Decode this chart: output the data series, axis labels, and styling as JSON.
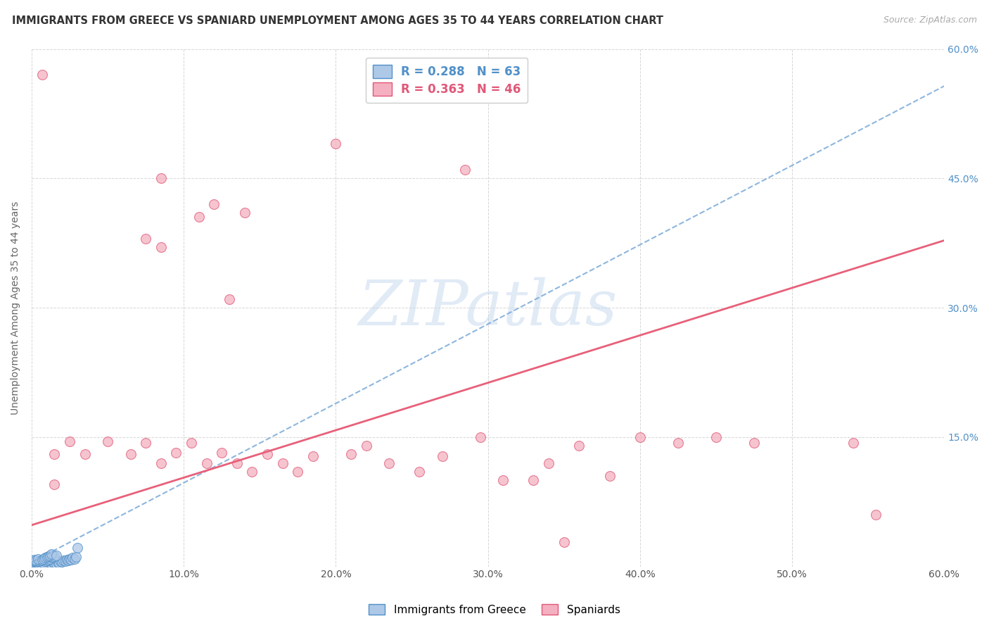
{
  "title": "IMMIGRANTS FROM GREECE VS SPANIARD UNEMPLOYMENT AMONG AGES 35 TO 44 YEARS CORRELATION CHART",
  "source": "Source: ZipAtlas.com",
  "ylabel": "Unemployment Among Ages 35 to 44 years",
  "xlim": [
    0.0,
    0.6
  ],
  "ylim": [
    0.0,
    0.6
  ],
  "xticks": [
    0.0,
    0.1,
    0.2,
    0.3,
    0.4,
    0.5,
    0.6
  ],
  "yticks": [
    0.0,
    0.15,
    0.3,
    0.45,
    0.6
  ],
  "xtick_labels": [
    "0.0%",
    "10.0%",
    "20.0%",
    "30.0%",
    "40.0%",
    "50.0%",
    "60.0%"
  ],
  "ytick_labels_right": [
    "",
    "15.0%",
    "30.0%",
    "45.0%",
    "60.0%"
  ],
  "greece_R": "0.288",
  "greece_N": "63",
  "spain_R": "0.363",
  "spain_N": "46",
  "greece_color": "#aec8e8",
  "spain_color": "#f4b0c0",
  "greece_edge_color": "#5090c8",
  "spain_edge_color": "#e05878",
  "greece_line_color": "#7aaad8",
  "spain_line_color": "#e8607a",
  "right_tick_color": "#5090c8",
  "watermark_text": "ZIPatlas",
  "greece_line_slope": 0.92,
  "greece_line_intercept": 0.005,
  "spain_line_slope": 0.55,
  "spain_line_intercept": 0.048,
  "greece_points": [
    [
      0.001,
      0.001
    ],
    [
      0.002,
      0.002
    ],
    [
      0.003,
      0.001
    ],
    [
      0.002,
      0.003
    ],
    [
      0.004,
      0.002
    ],
    [
      0.001,
      0.004
    ],
    [
      0.003,
      0.003
    ],
    [
      0.005,
      0.001
    ],
    [
      0.001,
      0.005
    ],
    [
      0.004,
      0.004
    ],
    [
      0.006,
      0.002
    ],
    [
      0.002,
      0.006
    ],
    [
      0.007,
      0.003
    ],
    [
      0.003,
      0.005
    ],
    [
      0.005,
      0.003
    ],
    [
      0.008,
      0.001
    ],
    [
      0.001,
      0.007
    ],
    [
      0.006,
      0.004
    ],
    [
      0.009,
      0.002
    ],
    [
      0.004,
      0.006
    ],
    [
      0.01,
      0.003
    ],
    [
      0.002,
      0.008
    ],
    [
      0.007,
      0.005
    ],
    [
      0.011,
      0.004
    ],
    [
      0.003,
      0.007
    ],
    [
      0.012,
      0.002
    ],
    [
      0.005,
      0.006
    ],
    [
      0.008,
      0.004
    ],
    [
      0.013,
      0.003
    ],
    [
      0.006,
      0.007
    ],
    [
      0.014,
      0.005
    ],
    [
      0.004,
      0.009
    ],
    [
      0.015,
      0.004
    ],
    [
      0.009,
      0.006
    ],
    [
      0.016,
      0.003
    ],
    [
      0.007,
      0.008
    ],
    [
      0.017,
      0.005
    ],
    [
      0.01,
      0.007
    ],
    [
      0.018,
      0.004
    ],
    [
      0.008,
      0.009
    ],
    [
      0.019,
      0.006
    ],
    [
      0.011,
      0.008
    ],
    [
      0.02,
      0.005
    ],
    [
      0.009,
      0.01
    ],
    [
      0.021,
      0.007
    ],
    [
      0.012,
      0.009
    ],
    [
      0.022,
      0.006
    ],
    [
      0.01,
      0.011
    ],
    [
      0.023,
      0.008
    ],
    [
      0.013,
      0.01
    ],
    [
      0.024,
      0.007
    ],
    [
      0.011,
      0.012
    ],
    [
      0.025,
      0.009
    ],
    [
      0.014,
      0.011
    ],
    [
      0.026,
      0.008
    ],
    [
      0.012,
      0.013
    ],
    [
      0.027,
      0.01
    ],
    [
      0.015,
      0.012
    ],
    [
      0.028,
      0.009
    ],
    [
      0.013,
      0.014
    ],
    [
      0.029,
      0.011
    ],
    [
      0.016,
      0.013
    ],
    [
      0.03,
      0.022
    ]
  ],
  "spain_points": [
    [
      0.007,
      0.57
    ],
    [
      0.085,
      0.45
    ],
    [
      0.075,
      0.38
    ],
    [
      0.085,
      0.37
    ],
    [
      0.12,
      0.42
    ],
    [
      0.11,
      0.405
    ],
    [
      0.13,
      0.31
    ],
    [
      0.2,
      0.49
    ],
    [
      0.285,
      0.46
    ],
    [
      0.14,
      0.41
    ],
    [
      0.015,
      0.13
    ],
    [
      0.025,
      0.145
    ],
    [
      0.035,
      0.13
    ],
    [
      0.05,
      0.145
    ],
    [
      0.065,
      0.13
    ],
    [
      0.075,
      0.143
    ],
    [
      0.085,
      0.12
    ],
    [
      0.095,
      0.132
    ],
    [
      0.105,
      0.143
    ],
    [
      0.115,
      0.12
    ],
    [
      0.125,
      0.132
    ],
    [
      0.135,
      0.12
    ],
    [
      0.145,
      0.11
    ],
    [
      0.155,
      0.13
    ],
    [
      0.165,
      0.12
    ],
    [
      0.175,
      0.11
    ],
    [
      0.185,
      0.128
    ],
    [
      0.21,
      0.13
    ],
    [
      0.22,
      0.14
    ],
    [
      0.235,
      0.12
    ],
    [
      0.255,
      0.11
    ],
    [
      0.27,
      0.128
    ],
    [
      0.295,
      0.15
    ],
    [
      0.31,
      0.1
    ],
    [
      0.33,
      0.1
    ],
    [
      0.34,
      0.12
    ],
    [
      0.36,
      0.14
    ],
    [
      0.38,
      0.105
    ],
    [
      0.4,
      0.15
    ],
    [
      0.425,
      0.143
    ],
    [
      0.45,
      0.15
    ],
    [
      0.475,
      0.143
    ],
    [
      0.54,
      0.143
    ],
    [
      0.555,
      0.06
    ],
    [
      0.35,
      0.028
    ],
    [
      0.015,
      0.095
    ]
  ]
}
